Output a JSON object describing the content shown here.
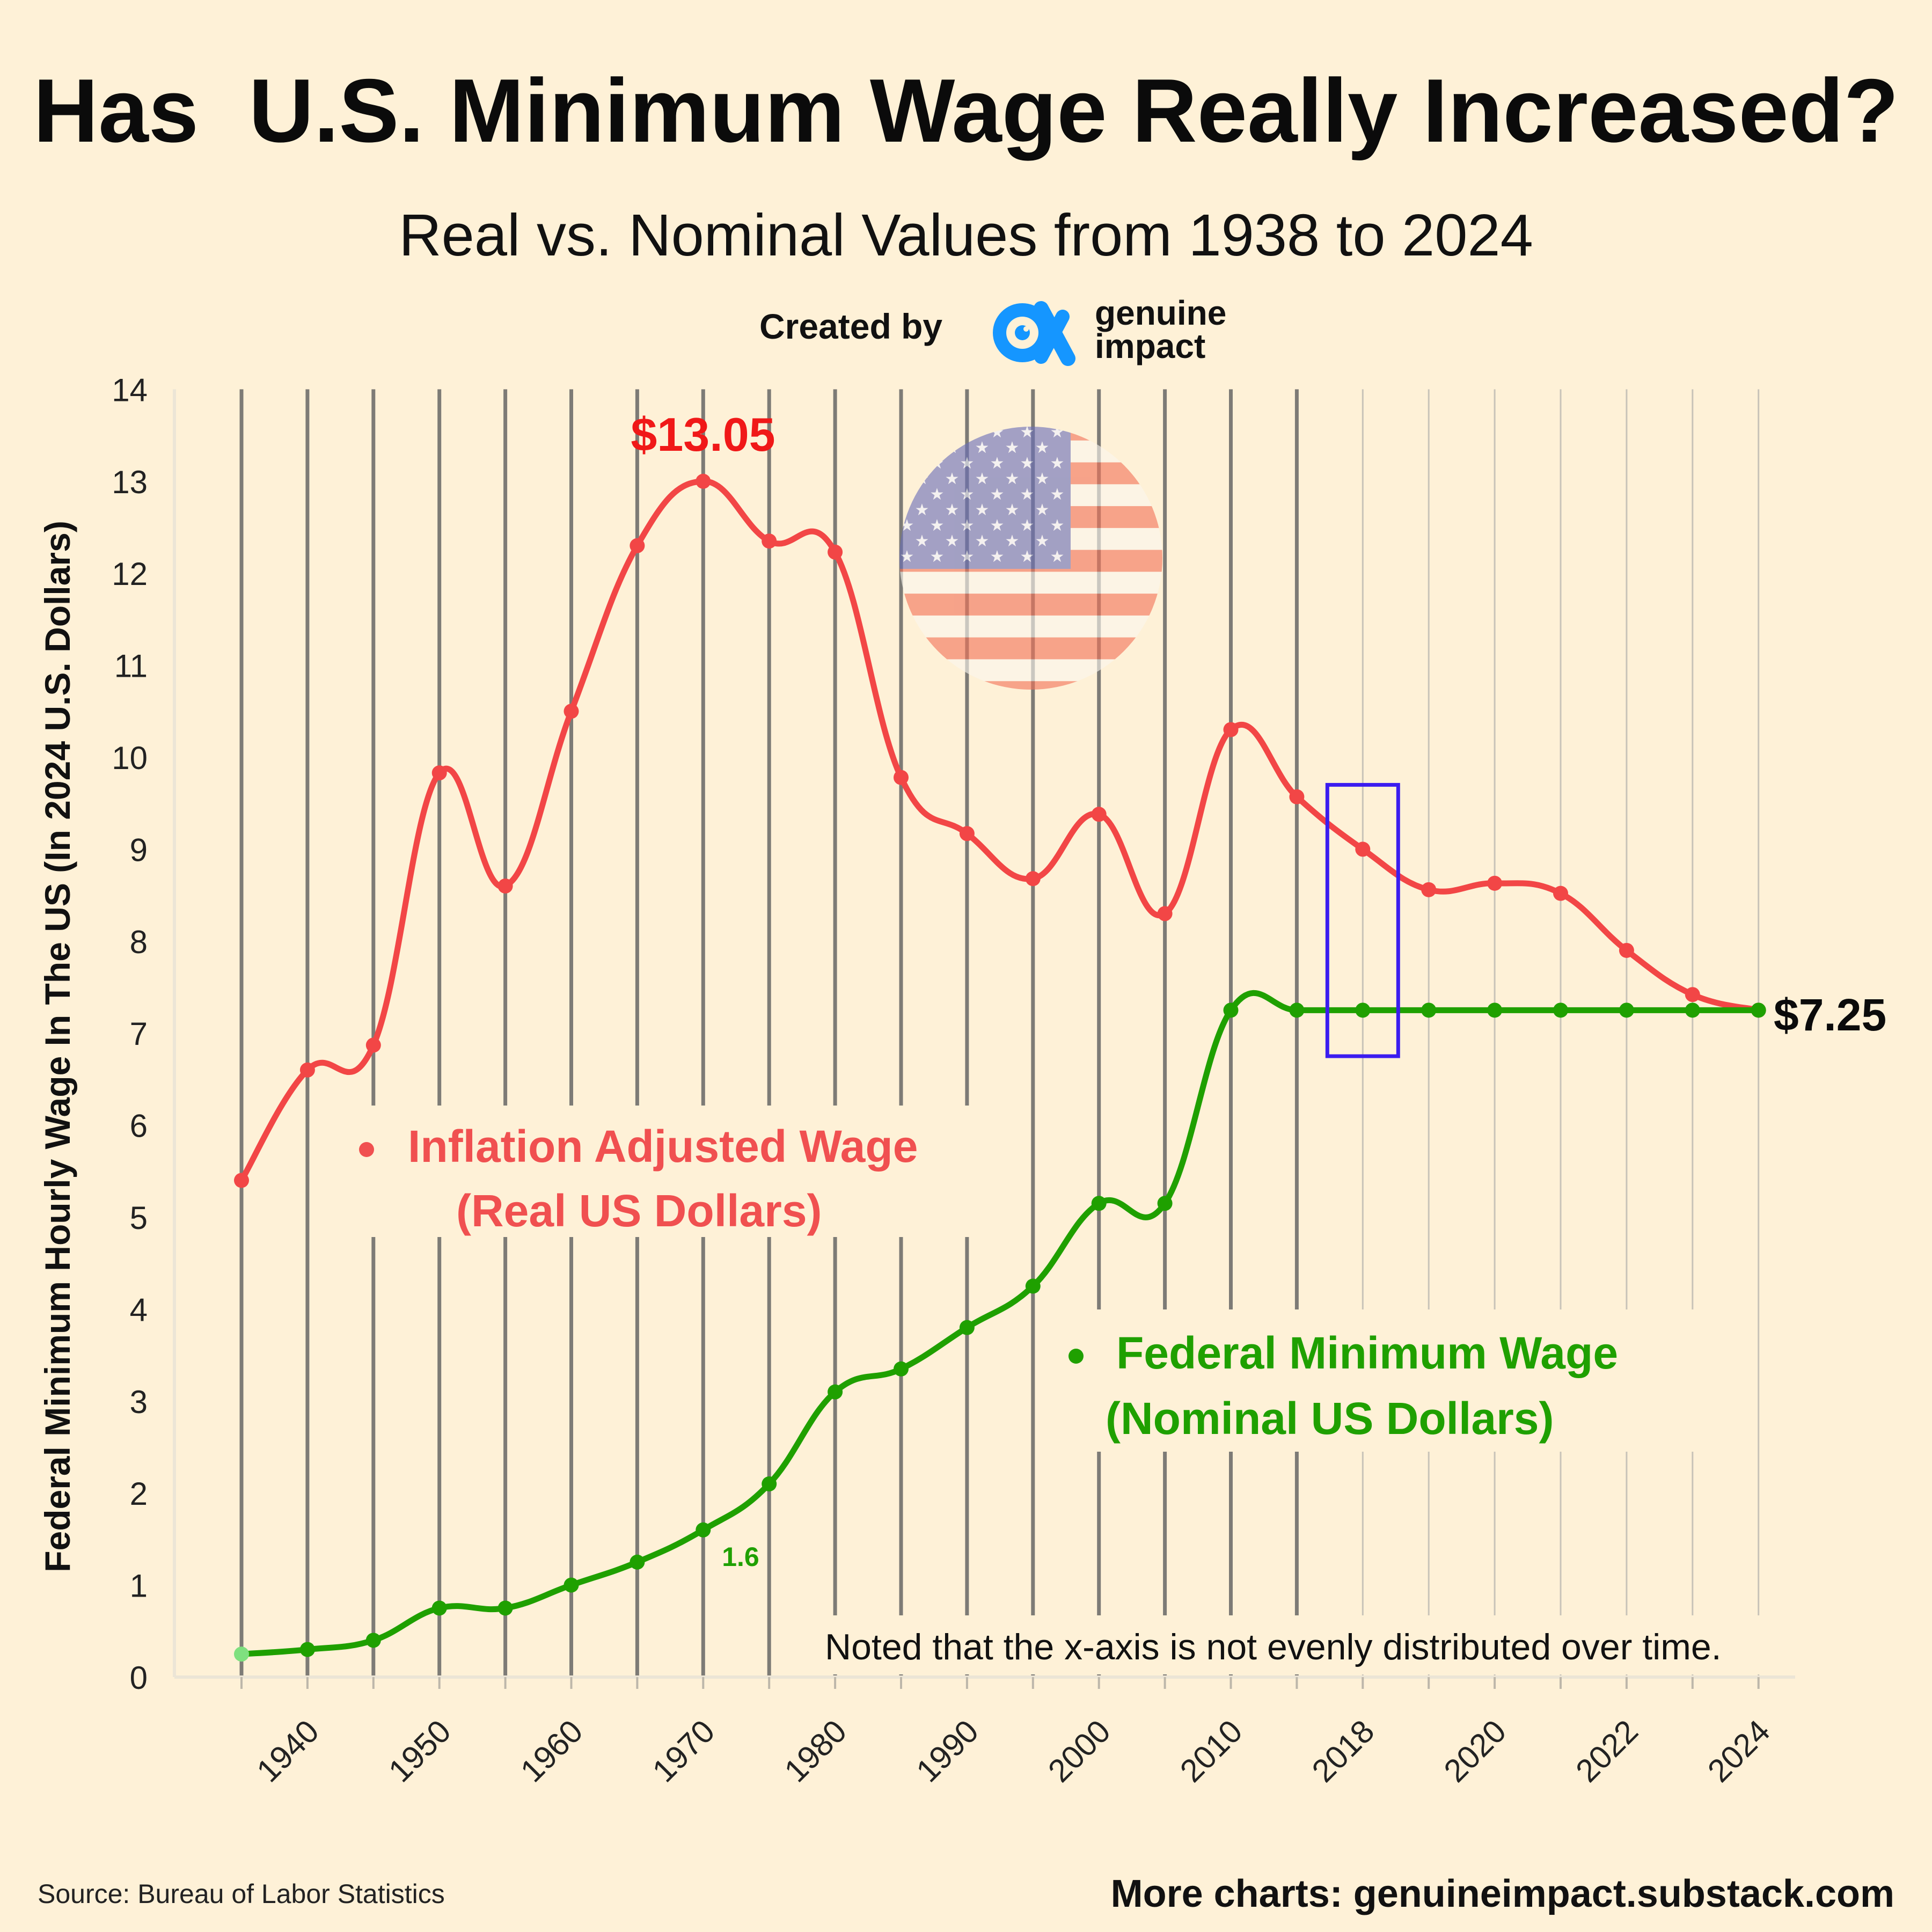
{
  "header": {
    "title": "Has  U.S. Minimum Wage Really Increased?",
    "subtitle": "Real vs. Nominal Values from 1938 to 2024",
    "created_by": "Created by",
    "brand_line1": "genuine",
    "brand_line2": "impact"
  },
  "footer": {
    "source": "Source: Bureau of Labor Statistics",
    "more": "More charts: genuineimpact.substack.com"
  },
  "colors": {
    "background": "#fef1d7",
    "real": "#f24646",
    "nominal": "#1fa000",
    "highlight_box": "#3b1cf0",
    "gridline": "#7d7b76",
    "logo_blue": "#1596ff"
  },
  "chart_data": {
    "type": "line",
    "title": "Has  U.S. Minimum Wage Really Increased?",
    "subtitle": "Real vs. Nominal Values from 1938 to 2024",
    "ylabel": "Federal  Minimum Hourly Wage In The US (In 2024 U.S. Dollars)",
    "ylim": [
      0,
      14
    ],
    "yticks": [
      0,
      1,
      2,
      3,
      4,
      5,
      6,
      7,
      8,
      9,
      10,
      11,
      12,
      13,
      14
    ],
    "x": [
      1938,
      1940,
      1945,
      1950,
      1955,
      1960,
      1965,
      1970,
      1975,
      1980,
      1985,
      1990,
      1995,
      2000,
      2005,
      2010,
      2015,
      2018,
      2019,
      2020,
      2021,
      2022,
      2023,
      2024
    ],
    "xtick_labels": [
      "",
      "1940",
      "",
      "1950",
      "",
      "1960",
      "",
      "1970",
      "",
      "1980",
      "",
      "1990",
      "",
      "2000",
      "",
      "2010",
      "",
      "2018",
      "",
      "2020",
      "",
      "2022",
      "",
      "2024"
    ],
    "grid": "vertical",
    "series": [
      {
        "name": "Inflation Adjusted Wage (Real US Dollars)",
        "values": [
          5.4,
          6.6,
          6.87,
          9.83,
          8.6,
          10.5,
          12.3,
          13.0,
          12.35,
          12.23,
          9.78,
          9.17,
          8.68,
          9.38,
          8.3,
          10.3,
          9.57,
          9.0,
          8.56,
          8.63,
          8.52,
          7.9,
          7.42,
          7.25
        ]
      },
      {
        "name": "Federal Minimum Wage (Nominal US Dollars)",
        "values": [
          0.25,
          0.3,
          0.4,
          0.75,
          0.75,
          1.0,
          1.25,
          1.6,
          2.1,
          3.1,
          3.35,
          3.8,
          4.25,
          5.15,
          5.15,
          7.25,
          7.25,
          7.25,
          7.25,
          7.25,
          7.25,
          7.25,
          7.25,
          7.25
        ]
      }
    ],
    "annotations": {
      "real_peak": "$13.05",
      "end_value": "$7.25",
      "nominal_1970": "1.6",
      "note": "Noted that the x-axis is not evenly distributed over time.",
      "real_legend_line1": "Inflation Adjusted Wage",
      "real_legend_line2": "(Real US Dollars)",
      "nominal_legend_line1": "Federal Minimum Wage",
      "nominal_legend_line2": "(Nominal US Dollars)"
    },
    "highlight_box_years": [
      2018
    ],
    "legend_position": "inside"
  }
}
